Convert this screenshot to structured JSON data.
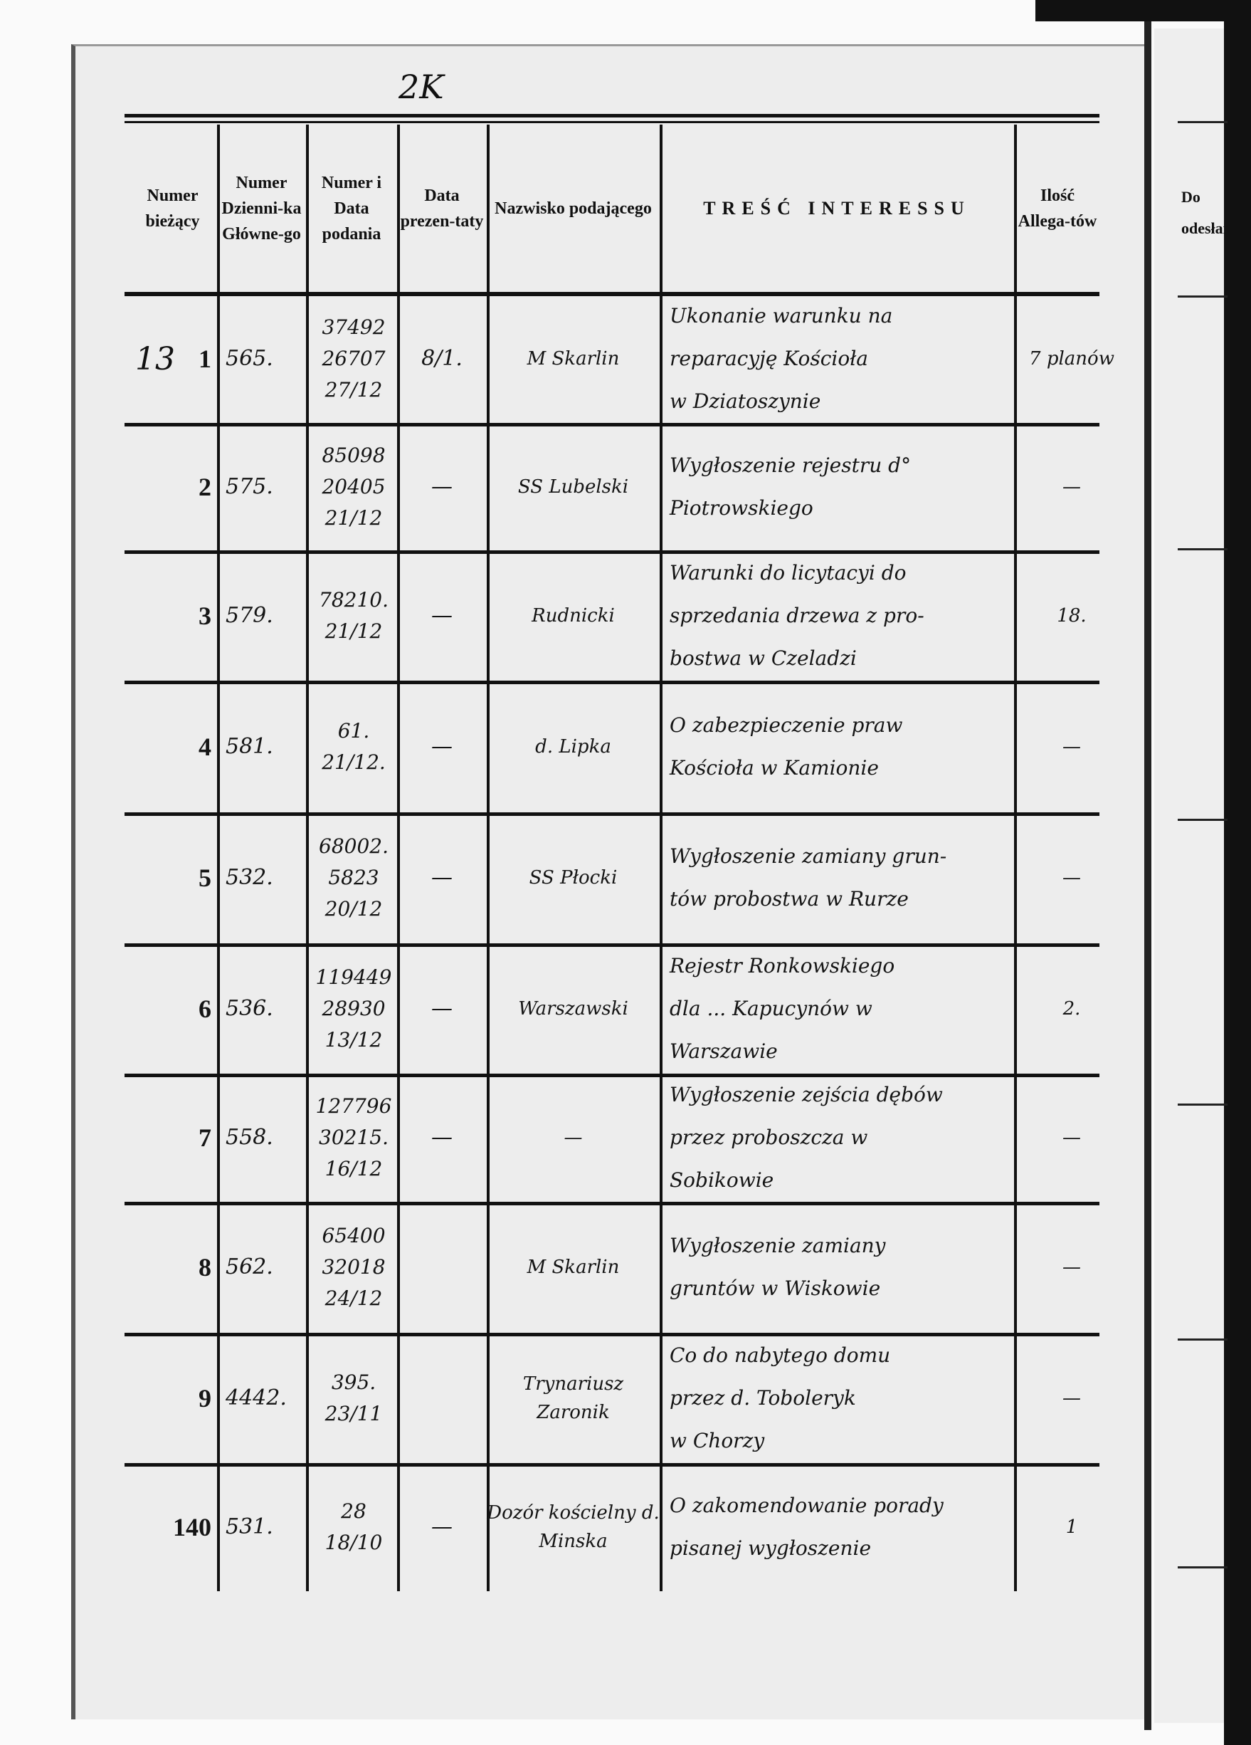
{
  "page_mark": "2K",
  "header": {
    "numer_biezacy": "Numer bieżący",
    "numer_dziennika": "Numer Dzienni-ka Główne-go",
    "numer_i_data": "Numer i Data podania",
    "data_prezentaty": "Data prezen-taty",
    "nazwisko": "Nazwisko podającego",
    "tresc": "TREŚĆ INTERESSU",
    "ilosc": "Ilość Allega-tów"
  },
  "right_page_header": "Do odesłan",
  "rows": [
    {
      "margin": "13",
      "nr": "1",
      "dziennik": "565.",
      "podanie": [
        "37492",
        "26707",
        "27/12"
      ],
      "prezentata": "8/1.",
      "nazwisko": "M Skarlin",
      "tresc": [
        "Ukonanie warunku na",
        "reparacyję Kościoła",
        "w Dziatoszynie"
      ],
      "ilosc": "7 planów"
    },
    {
      "margin": "",
      "nr": "2",
      "dziennik": "575.",
      "podanie": [
        "85098",
        "20405",
        "21/12"
      ],
      "prezentata": "—",
      "nazwisko": "SS Lubelski",
      "tresc": [
        "Wygłoszenie rejestru d°",
        "Piotrowskiego"
      ],
      "ilosc": "—"
    },
    {
      "margin": "",
      "nr": "3",
      "dziennik": "579.",
      "podanie": [
        "78210.",
        "21/12"
      ],
      "prezentata": "—",
      "nazwisko": "Rudnicki",
      "tresc": [
        "Warunki do licytacyi do",
        "sprzedania drzewa z pro-",
        "bostwa w Czeladzi"
      ],
      "ilosc": "18."
    },
    {
      "margin": "",
      "nr": "4",
      "dziennik": "581.",
      "podanie": [
        "61.",
        "21/12."
      ],
      "prezentata": "—",
      "nazwisko": "d. Lipka",
      "tresc": [
        "O zabezpieczenie praw",
        "Kościoła w Kamionie"
      ],
      "ilosc": "—"
    },
    {
      "margin": "",
      "nr": "5",
      "dziennik": "532.",
      "podanie": [
        "68002.",
        "5823",
        "20/12"
      ],
      "prezentata": "—",
      "nazwisko": "SS Płocki",
      "tresc": [
        "Wygłoszenie zamiany grun-",
        "tów probostwa w Rurze"
      ],
      "ilosc": "—"
    },
    {
      "margin": "",
      "nr": "6",
      "dziennik": "536.",
      "podanie": [
        "119449",
        "28930",
        "13/12"
      ],
      "prezentata": "—",
      "nazwisko": "Warszawski",
      "tresc": [
        "Rejestr Ronkowskiego",
        "dla ... Kapucynów w",
        "Warszawie"
      ],
      "ilosc": "2."
    },
    {
      "margin": "",
      "nr": "7",
      "dziennik": "558.",
      "podanie": [
        "127796",
        "30215.",
        "16/12"
      ],
      "prezentata": "—",
      "nazwisko": "—",
      "tresc": [
        "Wygłoszenie zejścia dębów",
        "przez proboszcza w",
        "Sobikowie"
      ],
      "ilosc": "—"
    },
    {
      "margin": "",
      "nr": "8",
      "dziennik": "562.",
      "podanie": [
        "65400",
        "32018",
        "24/12"
      ],
      "prezentata": "",
      "nazwisko": "M Skarlin",
      "tresc": [
        "Wygłoszenie zamiany",
        "gruntów w Wiskowie"
      ],
      "ilosc": "—"
    },
    {
      "margin": "",
      "nr": "9",
      "dziennik": "4442.",
      "podanie": [
        "395.",
        "23/11"
      ],
      "prezentata": "",
      "nazwisko": "Trynariusz Zaronik",
      "tresc": [
        "Co do nabytego domu",
        "przez d. Toboleryk",
        "w Chorzy"
      ],
      "ilosc": "—"
    },
    {
      "margin": "",
      "nr": "140",
      "dziennik": "531.",
      "podanie": [
        "28",
        "18/10"
      ],
      "prezentata": "—",
      "nazwisko": "Dozór kościelny d. Minska",
      "tresc": [
        "O zakomendowanie porady",
        "pisanej wygłoszenie"
      ],
      "ilosc": "1"
    }
  ]
}
